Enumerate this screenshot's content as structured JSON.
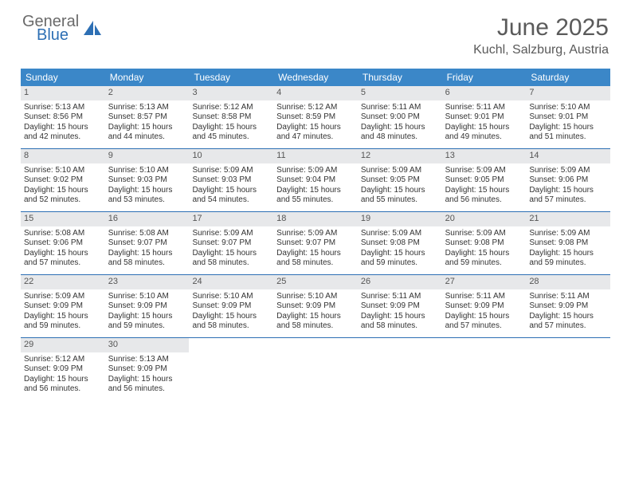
{
  "brand": {
    "part1": "General",
    "part2": "Blue"
  },
  "colors": {
    "header_bg": "#3b87c8",
    "accent": "#2d6fb4",
    "daynum_bg": "#e7e8ea",
    "text": "#333333",
    "title_text": "#5a5a5a"
  },
  "header": {
    "title": "June 2025",
    "location": "Kuchl, Salzburg, Austria"
  },
  "weekdays": [
    "Sunday",
    "Monday",
    "Tuesday",
    "Wednesday",
    "Thursday",
    "Friday",
    "Saturday"
  ],
  "weeks": [
    [
      {
        "n": "1",
        "sr": "Sunrise: 5:13 AM",
        "ss": "Sunset: 8:56 PM",
        "d1": "Daylight: 15 hours",
        "d2": "and 42 minutes."
      },
      {
        "n": "2",
        "sr": "Sunrise: 5:13 AM",
        "ss": "Sunset: 8:57 PM",
        "d1": "Daylight: 15 hours",
        "d2": "and 44 minutes."
      },
      {
        "n": "3",
        "sr": "Sunrise: 5:12 AM",
        "ss": "Sunset: 8:58 PM",
        "d1": "Daylight: 15 hours",
        "d2": "and 45 minutes."
      },
      {
        "n": "4",
        "sr": "Sunrise: 5:12 AM",
        "ss": "Sunset: 8:59 PM",
        "d1": "Daylight: 15 hours",
        "d2": "and 47 minutes."
      },
      {
        "n": "5",
        "sr": "Sunrise: 5:11 AM",
        "ss": "Sunset: 9:00 PM",
        "d1": "Daylight: 15 hours",
        "d2": "and 48 minutes."
      },
      {
        "n": "6",
        "sr": "Sunrise: 5:11 AM",
        "ss": "Sunset: 9:01 PM",
        "d1": "Daylight: 15 hours",
        "d2": "and 49 minutes."
      },
      {
        "n": "7",
        "sr": "Sunrise: 5:10 AM",
        "ss": "Sunset: 9:01 PM",
        "d1": "Daylight: 15 hours",
        "d2": "and 51 minutes."
      }
    ],
    [
      {
        "n": "8",
        "sr": "Sunrise: 5:10 AM",
        "ss": "Sunset: 9:02 PM",
        "d1": "Daylight: 15 hours",
        "d2": "and 52 minutes."
      },
      {
        "n": "9",
        "sr": "Sunrise: 5:10 AM",
        "ss": "Sunset: 9:03 PM",
        "d1": "Daylight: 15 hours",
        "d2": "and 53 minutes."
      },
      {
        "n": "10",
        "sr": "Sunrise: 5:09 AM",
        "ss": "Sunset: 9:03 PM",
        "d1": "Daylight: 15 hours",
        "d2": "and 54 minutes."
      },
      {
        "n": "11",
        "sr": "Sunrise: 5:09 AM",
        "ss": "Sunset: 9:04 PM",
        "d1": "Daylight: 15 hours",
        "d2": "and 55 minutes."
      },
      {
        "n": "12",
        "sr": "Sunrise: 5:09 AM",
        "ss": "Sunset: 9:05 PM",
        "d1": "Daylight: 15 hours",
        "d2": "and 55 minutes."
      },
      {
        "n": "13",
        "sr": "Sunrise: 5:09 AM",
        "ss": "Sunset: 9:05 PM",
        "d1": "Daylight: 15 hours",
        "d2": "and 56 minutes."
      },
      {
        "n": "14",
        "sr": "Sunrise: 5:09 AM",
        "ss": "Sunset: 9:06 PM",
        "d1": "Daylight: 15 hours",
        "d2": "and 57 minutes."
      }
    ],
    [
      {
        "n": "15",
        "sr": "Sunrise: 5:08 AM",
        "ss": "Sunset: 9:06 PM",
        "d1": "Daylight: 15 hours",
        "d2": "and 57 minutes."
      },
      {
        "n": "16",
        "sr": "Sunrise: 5:08 AM",
        "ss": "Sunset: 9:07 PM",
        "d1": "Daylight: 15 hours",
        "d2": "and 58 minutes."
      },
      {
        "n": "17",
        "sr": "Sunrise: 5:09 AM",
        "ss": "Sunset: 9:07 PM",
        "d1": "Daylight: 15 hours",
        "d2": "and 58 minutes."
      },
      {
        "n": "18",
        "sr": "Sunrise: 5:09 AM",
        "ss": "Sunset: 9:07 PM",
        "d1": "Daylight: 15 hours",
        "d2": "and 58 minutes."
      },
      {
        "n": "19",
        "sr": "Sunrise: 5:09 AM",
        "ss": "Sunset: 9:08 PM",
        "d1": "Daylight: 15 hours",
        "d2": "and 59 minutes."
      },
      {
        "n": "20",
        "sr": "Sunrise: 5:09 AM",
        "ss": "Sunset: 9:08 PM",
        "d1": "Daylight: 15 hours",
        "d2": "and 59 minutes."
      },
      {
        "n": "21",
        "sr": "Sunrise: 5:09 AM",
        "ss": "Sunset: 9:08 PM",
        "d1": "Daylight: 15 hours",
        "d2": "and 59 minutes."
      }
    ],
    [
      {
        "n": "22",
        "sr": "Sunrise: 5:09 AM",
        "ss": "Sunset: 9:09 PM",
        "d1": "Daylight: 15 hours",
        "d2": "and 59 minutes."
      },
      {
        "n": "23",
        "sr": "Sunrise: 5:10 AM",
        "ss": "Sunset: 9:09 PM",
        "d1": "Daylight: 15 hours",
        "d2": "and 59 minutes."
      },
      {
        "n": "24",
        "sr": "Sunrise: 5:10 AM",
        "ss": "Sunset: 9:09 PM",
        "d1": "Daylight: 15 hours",
        "d2": "and 58 minutes."
      },
      {
        "n": "25",
        "sr": "Sunrise: 5:10 AM",
        "ss": "Sunset: 9:09 PM",
        "d1": "Daylight: 15 hours",
        "d2": "and 58 minutes."
      },
      {
        "n": "26",
        "sr": "Sunrise: 5:11 AM",
        "ss": "Sunset: 9:09 PM",
        "d1": "Daylight: 15 hours",
        "d2": "and 58 minutes."
      },
      {
        "n": "27",
        "sr": "Sunrise: 5:11 AM",
        "ss": "Sunset: 9:09 PM",
        "d1": "Daylight: 15 hours",
        "d2": "and 57 minutes."
      },
      {
        "n": "28",
        "sr": "Sunrise: 5:11 AM",
        "ss": "Sunset: 9:09 PM",
        "d1": "Daylight: 15 hours",
        "d2": "and 57 minutes."
      }
    ],
    [
      {
        "n": "29",
        "sr": "Sunrise: 5:12 AM",
        "ss": "Sunset: 9:09 PM",
        "d1": "Daylight: 15 hours",
        "d2": "and 56 minutes."
      },
      {
        "n": "30",
        "sr": "Sunrise: 5:13 AM",
        "ss": "Sunset: 9:09 PM",
        "d1": "Daylight: 15 hours",
        "d2": "and 56 minutes."
      },
      {
        "empty": true
      },
      {
        "empty": true
      },
      {
        "empty": true
      },
      {
        "empty": true
      },
      {
        "empty": true
      }
    ]
  ]
}
